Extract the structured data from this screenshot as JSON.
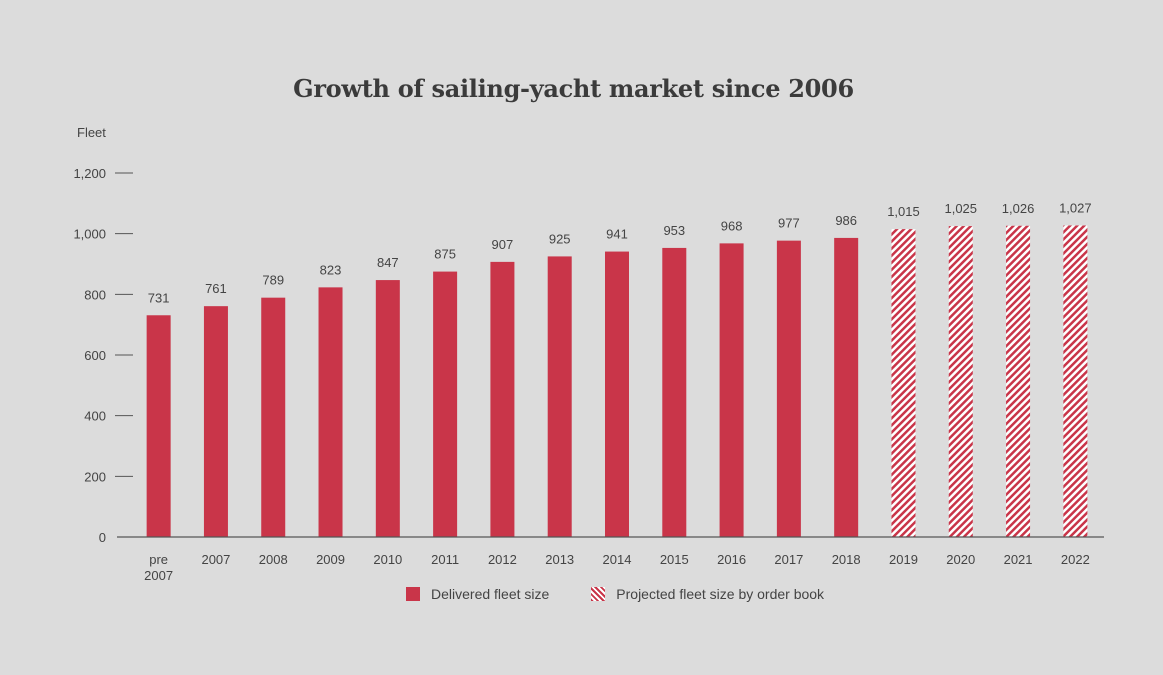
{
  "colors": {
    "background": "#dcdcdc",
    "delivered": "#c93549",
    "projected_stripe": "#c93549",
    "projected_gap": "#ffffff",
    "axis": "#555555",
    "text": "#3a3a3a"
  },
  "chart_data": {
    "type": "bar",
    "title": "Growth of sailing-yacht market since 2006",
    "ylabel": "Fleet",
    "xlabel": "",
    "ylim": [
      0,
      1200
    ],
    "yticks": [
      "0",
      "200",
      "400",
      "600",
      "800",
      "1,000",
      "1,200"
    ],
    "ytick_values": [
      0,
      200,
      400,
      600,
      800,
      1000,
      1200
    ],
    "grid": false,
    "legend_position": "bottom-center",
    "categories": [
      "pre 2007",
      "2007",
      "2008",
      "2009",
      "2010",
      "2011",
      "2012",
      "2013",
      "2014",
      "2015",
      "2016",
      "2017",
      "2018",
      "2019",
      "2020",
      "2021",
      "2022"
    ],
    "category_labels": [
      [
        "pre",
        "2007"
      ],
      [
        "2007"
      ],
      [
        "2008"
      ],
      [
        "2009"
      ],
      [
        "2010"
      ],
      [
        "2011"
      ],
      [
        "2012"
      ],
      [
        "2013"
      ],
      [
        "2014"
      ],
      [
        "2015"
      ],
      [
        "2016"
      ],
      [
        "2017"
      ],
      [
        "2018"
      ],
      [
        "2019"
      ],
      [
        "2020"
      ],
      [
        "2021"
      ],
      [
        "2022"
      ]
    ],
    "values": [
      731,
      761,
      789,
      823,
      847,
      875,
      907,
      925,
      941,
      953,
      968,
      977,
      986,
      1015,
      1025,
      1026,
      1027
    ],
    "value_labels": [
      "731",
      "761",
      "789",
      "823",
      "847",
      "875",
      "907",
      "925",
      "941",
      "953",
      "968",
      "977",
      "986",
      "1,015",
      "1,025",
      "1,026",
      "1,027"
    ],
    "series": [
      {
        "name": "Delivered fleet size",
        "style": "solid",
        "categories": [
          "pre 2007",
          "2007",
          "2008",
          "2009",
          "2010",
          "2011",
          "2012",
          "2013",
          "2014",
          "2015",
          "2016",
          "2017",
          "2018"
        ]
      },
      {
        "name": "Projected fleet size by order book",
        "style": "hatched",
        "categories": [
          "2019",
          "2020",
          "2021",
          "2022"
        ]
      }
    ]
  }
}
